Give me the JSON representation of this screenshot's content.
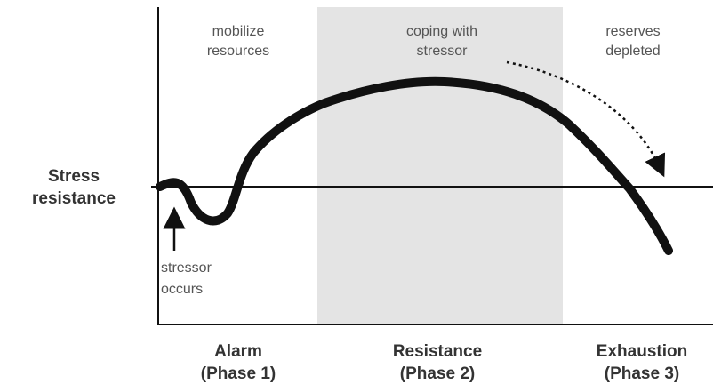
{
  "y_label": [
    "Stress",
    "resistance"
  ],
  "annotation": [
    "stressor",
    "occurs"
  ],
  "phases": [
    {
      "top_label": [
        "mobilize",
        "resources"
      ],
      "name": "Alarm",
      "number": "(Phase 1)"
    },
    {
      "top_label": [
        "coping with",
        "stressor"
      ],
      "name": "Resistance",
      "number": "(Phase 2)"
    },
    {
      "top_label": [
        "reserves",
        "depleted"
      ],
      "name": "Exhaustion",
      "number": "(Phase 3)"
    }
  ]
}
